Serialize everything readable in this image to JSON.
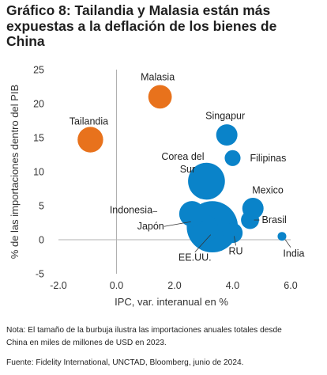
{
  "title_lines": [
    "Gráfico 8: Tailandia y Malasia están más",
    "expuestas a la deflación de los bienes de",
    "China"
  ],
  "note_lines": [
    "Nota: El tamaño de la burbuja ilustra las importaciones anuales totales desde",
    "China en miles de millones de USD en 2023."
  ],
  "source": "Fuente: Fidelity International, UNCTAD, Bloomberg, junio de 2024.",
  "colors": {
    "highlight": "#e8721c",
    "default": "#0a83c9",
    "zero_line": "#b0b0b0"
  },
  "chart_data": {
    "type": "scatter",
    "title": "Gráfico 8: Tailandia y Malasia están más expuestas a la deflación de los bienes de China",
    "xlabel": "IPC, var. interanual en %",
    "ylabel": "% de las importaciones dentro del PIB",
    "xlim": [
      -2.0,
      6.0
    ],
    "ylim": [
      -5,
      25
    ],
    "xticks": [
      "-2.0",
      "0.0",
      "2.0",
      "4.0",
      "6.0"
    ],
    "yticks": [
      "-5",
      "0",
      "5",
      "10",
      "15",
      "20",
      "25"
    ],
    "grid": false,
    "points": [
      {
        "label": "Tailandia",
        "x": -0.9,
        "y": 14.7,
        "size": 130,
        "color": "#e8721c"
      },
      {
        "label": "Malasia",
        "x": 1.5,
        "y": 21.0,
        "size": 110,
        "color": "#e8721c"
      },
      {
        "label": "Singapur",
        "x": 3.8,
        "y": 15.4,
        "size": 90,
        "color": "#0a83c9"
      },
      {
        "label": "Filipinas",
        "x": 4.0,
        "y": 12.0,
        "size": 50,
        "color": "#0a83c9"
      },
      {
        "label": "Corea del Sur",
        "x": 3.1,
        "y": 8.6,
        "size": 270,
        "color": "#0a83c9"
      },
      {
        "label": "Mexico",
        "x": 4.7,
        "y": 4.6,
        "size": 90,
        "color": "#0a83c9"
      },
      {
        "label": "Indonesia",
        "x": 2.6,
        "y": 3.8,
        "size": 130,
        "color": "#0a83c9"
      },
      {
        "label": "Brasil",
        "x": 4.6,
        "y": 2.9,
        "size": 65,
        "color": "#0a83c9"
      },
      {
        "label": "Japón",
        "x": 3.0,
        "y": 1.6,
        "size": 170,
        "color": "#0a83c9"
      },
      {
        "label": "EE.UU.",
        "x": 3.3,
        "y": 1.9,
        "size": 520,
        "color": "#0a83c9"
      },
      {
        "label": "RU",
        "x": 4.0,
        "y": 1.0,
        "size": 80,
        "color": "#0a83c9"
      },
      {
        "label": "India",
        "x": 5.7,
        "y": 0.5,
        "size": 15,
        "color": "#0a83c9"
      }
    ]
  }
}
